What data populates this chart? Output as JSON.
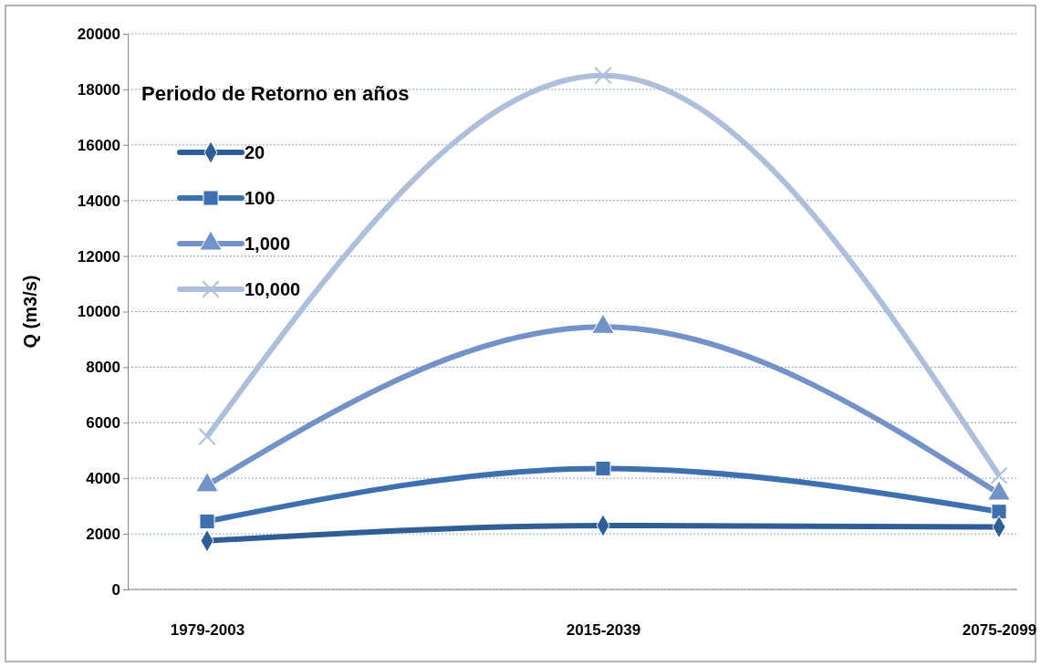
{
  "chart_data": {
    "type": "line",
    "ylabel": "Q  (m3/s)",
    "legend_title": "Periodo de Retorno en años",
    "categories": [
      "1979-2003",
      "2015-2039",
      "2075-2099"
    ],
    "series": [
      {
        "name": "20",
        "color": "#2f5d95",
        "marker": "diamond",
        "values": [
          1750,
          2300,
          2250
        ]
      },
      {
        "name": "100",
        "color": "#3e70b0",
        "marker": "square",
        "values": [
          2450,
          4350,
          2800
        ]
      },
      {
        "name": "1,000",
        "color": "#7393c8",
        "marker": "triangle",
        "values": [
          3750,
          9450,
          3450
        ]
      },
      {
        "name": "10,000",
        "color": "#aebfdb",
        "marker": "cross",
        "values": [
          5500,
          18500,
          4100
        ]
      }
    ],
    "ylim": [
      0,
      20000
    ],
    "yticks": [
      0,
      2000,
      4000,
      6000,
      8000,
      10000,
      12000,
      14000,
      16000,
      18000,
      20000
    ],
    "grid": "y",
    "legend": "top left",
    "line_style": "solid"
  }
}
